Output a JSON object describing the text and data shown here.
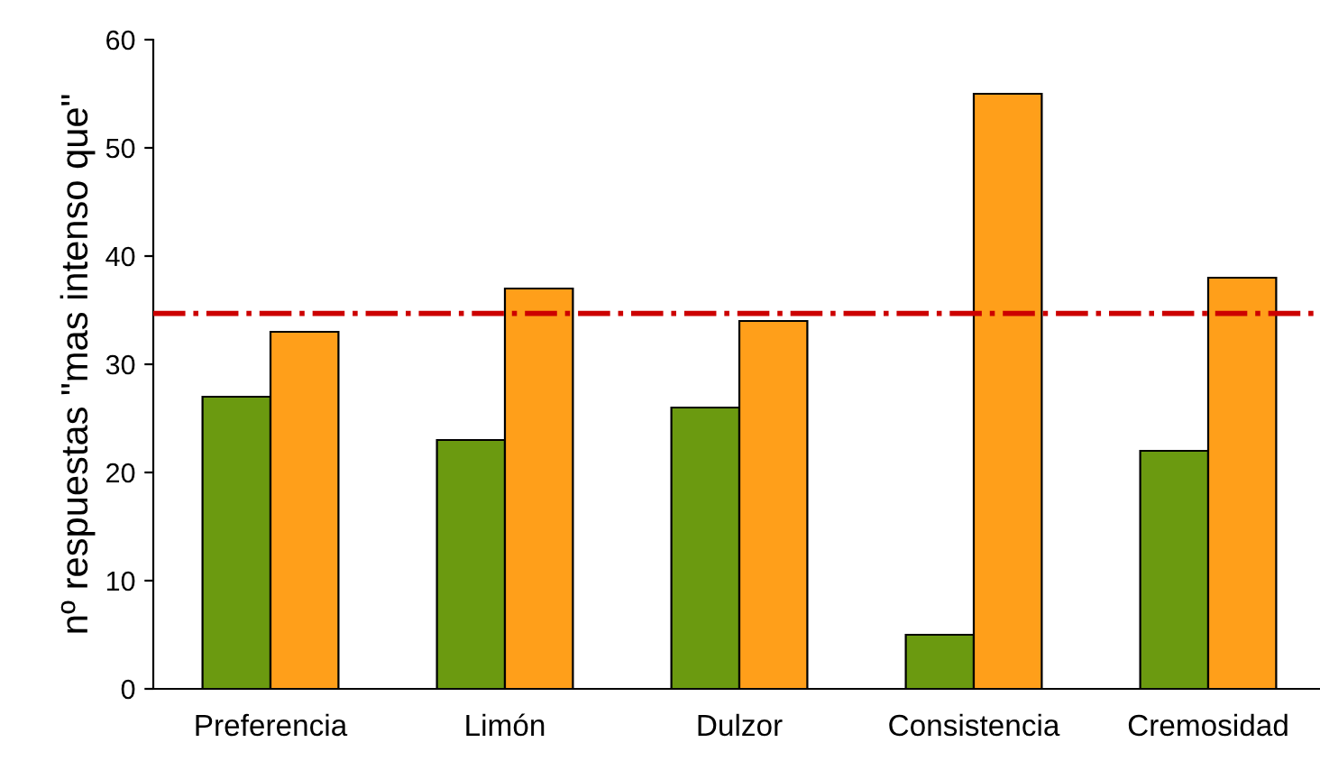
{
  "chart_data": {
    "type": "bar",
    "ylabel": "nº respuestas \"mas intenso que\"",
    "categories": [
      "Preferencia",
      "Limón",
      "Dulzor",
      "Consistencia",
      "Cremosidad"
    ],
    "series": [
      {
        "color": "#6b9a10",
        "values": [
          27,
          23,
          26,
          5,
          22
        ]
      },
      {
        "color": "#ff9f1a",
        "values": [
          33,
          37,
          34,
          55,
          38
        ]
      }
    ],
    "ylim": [
      0,
      60
    ],
    "yticks": [
      0,
      10,
      20,
      30,
      40,
      50,
      60
    ],
    "ref_lines": [
      {
        "axis": "y",
        "value": 34.7,
        "color": "#cc0000",
        "line_style": "dashdot"
      }
    ],
    "grid": false,
    "legend": false
  }
}
